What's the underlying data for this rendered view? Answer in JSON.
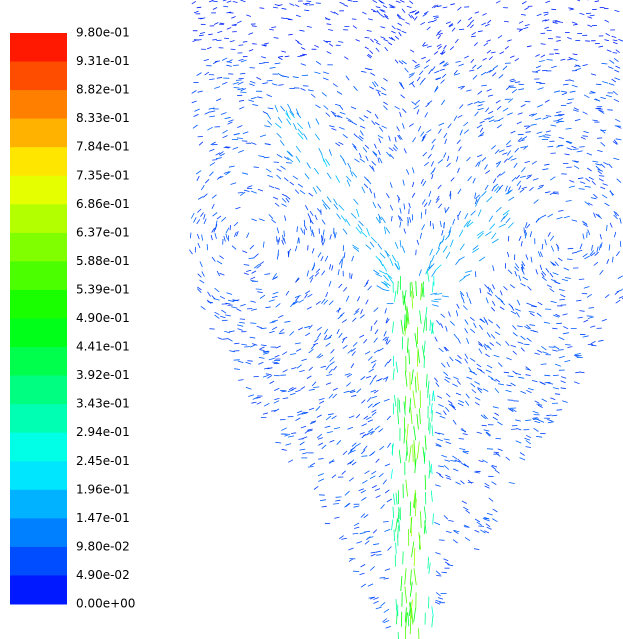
{
  "colorbar": {
    "labels": [
      "9.80e-01",
      "9.31e-01",
      "8.82e-01",
      "8.33e-01",
      "7.84e-01",
      "7.35e-01",
      "6.86e-01",
      "6.37e-01",
      "5.88e-01",
      "5.39e-01",
      "4.90e-01",
      "4.41e-01",
      "3.92e-01",
      "3.43e-01",
      "2.94e-01",
      "2.45e-01",
      "1.96e-01",
      "1.47e-01",
      "9.80e-02",
      "4.90e-02",
      "0.00e+00"
    ]
  }
}
